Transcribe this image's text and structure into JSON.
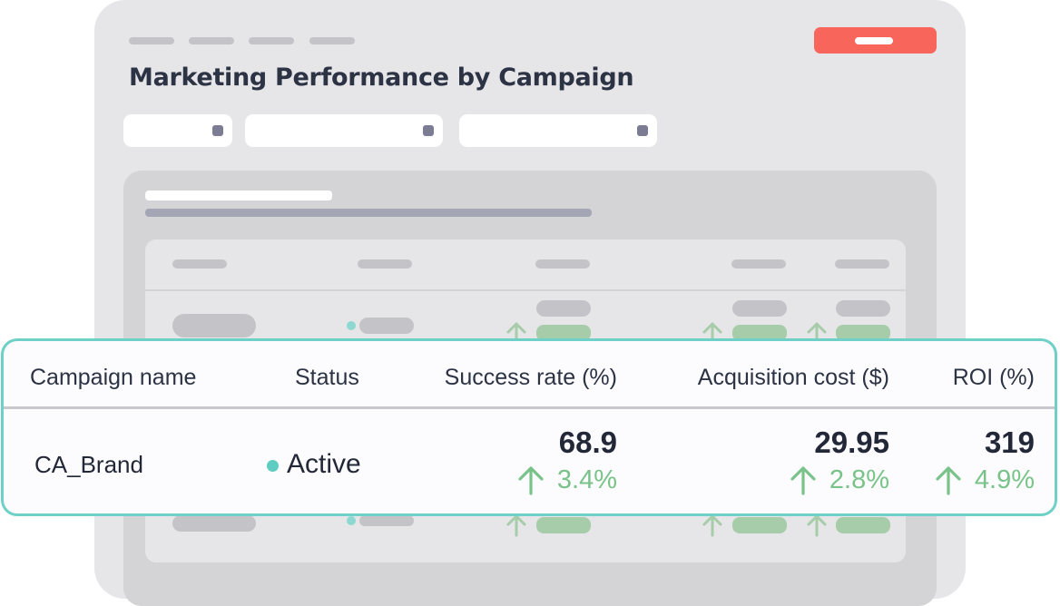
{
  "page_title": "Marketing Performance by Campaign",
  "colors": {
    "accent_border": "#6fd0c7",
    "cta_button": "#f8655a",
    "positive_delta": "#79c38a",
    "status_active_dot": "#5fccc2",
    "title_text": "#2c3344"
  },
  "table": {
    "headers": {
      "campaign_name": "Campaign name",
      "status": "Status",
      "success_rate": "Success rate (%)",
      "acquisition_cost": "Acquisition cost ($)",
      "roi": "ROI (%)"
    },
    "row": {
      "campaign_name": "CA_Brand",
      "status": "Active",
      "status_icon": "status-dot-icon",
      "success_rate": {
        "value": "68.9",
        "delta": "3.4%",
        "trend_icon": "arrow-up-icon"
      },
      "acquisition_cost": {
        "value": "29.95",
        "delta": "2.8%",
        "trend_icon": "arrow-up-icon"
      },
      "roi": {
        "value": "319",
        "delta": "4.9%",
        "trend_icon": "arrow-up-icon"
      }
    }
  }
}
